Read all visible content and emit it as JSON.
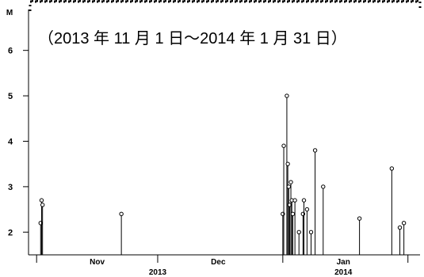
{
  "chart_data": {
    "type": "stem",
    "title": "（2013 年 11 月 1 日～2014 年 1 月 31 日）",
    "ylabel": "M",
    "xlabel": "",
    "ylim": [
      1.5,
      6.9
    ],
    "y_ticks": [
      2,
      3,
      4,
      5,
      6
    ],
    "y_tick_labels": [
      "2",
      "3",
      "4",
      "5",
      "6"
    ],
    "x_range": [
      "2013-10-30",
      "2014-02-04"
    ],
    "x_tick_dates": [
      "2013-11-01",
      "2013-12-01",
      "2014-01-01",
      "2014-02-01"
    ],
    "month_labels": [
      {
        "text": "Nov",
        "date": "2013-11-16"
      },
      {
        "text": "Dec",
        "date": "2013-12-16"
      },
      {
        "text": "Jan",
        "date": "2014-01-16"
      }
    ],
    "year_labels": [
      {
        "text": "2013",
        "date": "2013-12-01"
      },
      {
        "text": "2014",
        "date": "2014-01-16"
      }
    ],
    "grid": false,
    "series": [
      {
        "points": [
          {
            "date": "2013-11-02",
            "magnitude": 2.2
          },
          {
            "date": "2013-11-02",
            "magnitude": 2.7
          },
          {
            "date": "2013-11-02",
            "magnitude": 2.6
          },
          {
            "date": "2013-11-22",
            "magnitude": 2.4
          },
          {
            "date": "2014-01-01",
            "magnitude": 2.4
          },
          {
            "date": "2014-01-01",
            "magnitude": 3.9
          },
          {
            "date": "2014-01-02",
            "magnitude": 5.0
          },
          {
            "date": "2014-01-02",
            "magnitude": 3.5
          },
          {
            "date": "2014-01-02",
            "magnitude": 3.0
          },
          {
            "date": "2014-01-02",
            "magnitude": 2.6
          },
          {
            "date": "2014-01-03",
            "magnitude": 3.1
          },
          {
            "date": "2014-01-03",
            "magnitude": 2.7
          },
          {
            "date": "2014-01-03",
            "magnitude": 2.4
          },
          {
            "date": "2014-01-04",
            "magnitude": 2.7
          },
          {
            "date": "2014-01-05",
            "magnitude": 2.0
          },
          {
            "date": "2014-01-06",
            "magnitude": 2.4
          },
          {
            "date": "2014-01-06",
            "magnitude": 2.7
          },
          {
            "date": "2014-01-07",
            "magnitude": 2.5
          },
          {
            "date": "2014-01-08",
            "magnitude": 2.0
          },
          {
            "date": "2014-01-09",
            "magnitude": 3.8
          },
          {
            "date": "2014-01-11",
            "magnitude": 3.0
          },
          {
            "date": "2014-01-20",
            "magnitude": 2.3
          },
          {
            "date": "2014-01-28",
            "magnitude": 3.4
          },
          {
            "date": "2014-01-30",
            "magnitude": 2.1
          },
          {
            "date": "2014-01-31",
            "magnitude": 2.2
          }
        ]
      }
    ]
  }
}
